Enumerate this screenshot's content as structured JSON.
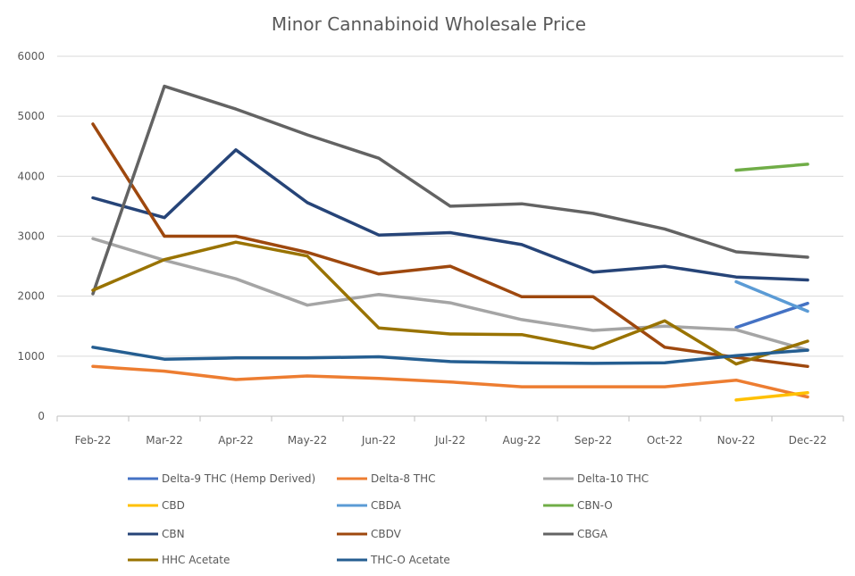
{
  "chart_data": {
    "type": "line",
    "title": "Minor Cannabinoid Wholesale Price",
    "xlabel": "",
    "ylabel": "",
    "ylim": [
      0,
      6000
    ],
    "yticks": [
      0,
      1000,
      2000,
      3000,
      4000,
      5000,
      6000
    ],
    "grid": true,
    "legend_position": "bottom",
    "categories": [
      "Feb-22",
      "Mar-22",
      "Apr-22",
      "May-22",
      "Jun-22",
      "Jul-22",
      "Aug-22",
      "Sep-22",
      "Oct-22",
      "Nov-22",
      "Dec-22"
    ],
    "series": [
      {
        "name": "Delta-9 THC (Hemp Derived)",
        "color": "#4472c4",
        "values": [
          null,
          null,
          null,
          null,
          null,
          null,
          null,
          null,
          null,
          1480,
          1880
        ]
      },
      {
        "name": "Delta-8 THC",
        "color": "#ed7d31",
        "values": [
          830,
          750,
          610,
          670,
          630,
          570,
          490,
          490,
          490,
          600,
          320
        ]
      },
      {
        "name": "Delta-10 THC",
        "color": "#a5a5a5",
        "values": [
          2960,
          2600,
          2290,
          1850,
          2030,
          1890,
          1610,
          1430,
          1500,
          1440,
          1100
        ]
      },
      {
        "name": "CBD",
        "color": "#ffc000",
        "values": [
          null,
          null,
          null,
          null,
          null,
          null,
          null,
          null,
          null,
          270,
          390
        ]
      },
      {
        "name": "CBDA",
        "color": "#5b9bd5",
        "values": [
          null,
          null,
          null,
          null,
          null,
          null,
          null,
          null,
          null,
          2240,
          1750
        ]
      },
      {
        "name": "CBN-O",
        "color": "#70ad47",
        "values": [
          null,
          null,
          null,
          null,
          null,
          null,
          null,
          null,
          null,
          4100,
          4200
        ]
      },
      {
        "name": "CBN",
        "color": "#264478",
        "values": [
          3640,
          3310,
          4440,
          3560,
          3020,
          3060,
          2860,
          2400,
          2500,
          2320,
          2270
        ]
      },
      {
        "name": "CBDV",
        "color": "#9e480e",
        "values": [
          4870,
          3000,
          3000,
          2730,
          2370,
          2500,
          1990,
          1990,
          1150,
          980,
          830
        ]
      },
      {
        "name": "CBGA",
        "color": "#636363",
        "values": [
          2040,
          5500,
          5120,
          4690,
          4300,
          3500,
          3540,
          3380,
          3120,
          2740,
          2650
        ]
      },
      {
        "name": "HHC Acetate",
        "color": "#997300",
        "values": [
          2100,
          2610,
          2900,
          2670,
          1470,
          1370,
          1360,
          1130,
          1590,
          870,
          1250
        ]
      },
      {
        "name": "THC-O Acetate",
        "color": "#255e91",
        "values": [
          1150,
          950,
          970,
          970,
          990,
          910,
          890,
          880,
          890,
          1010,
          1100
        ]
      }
    ]
  }
}
